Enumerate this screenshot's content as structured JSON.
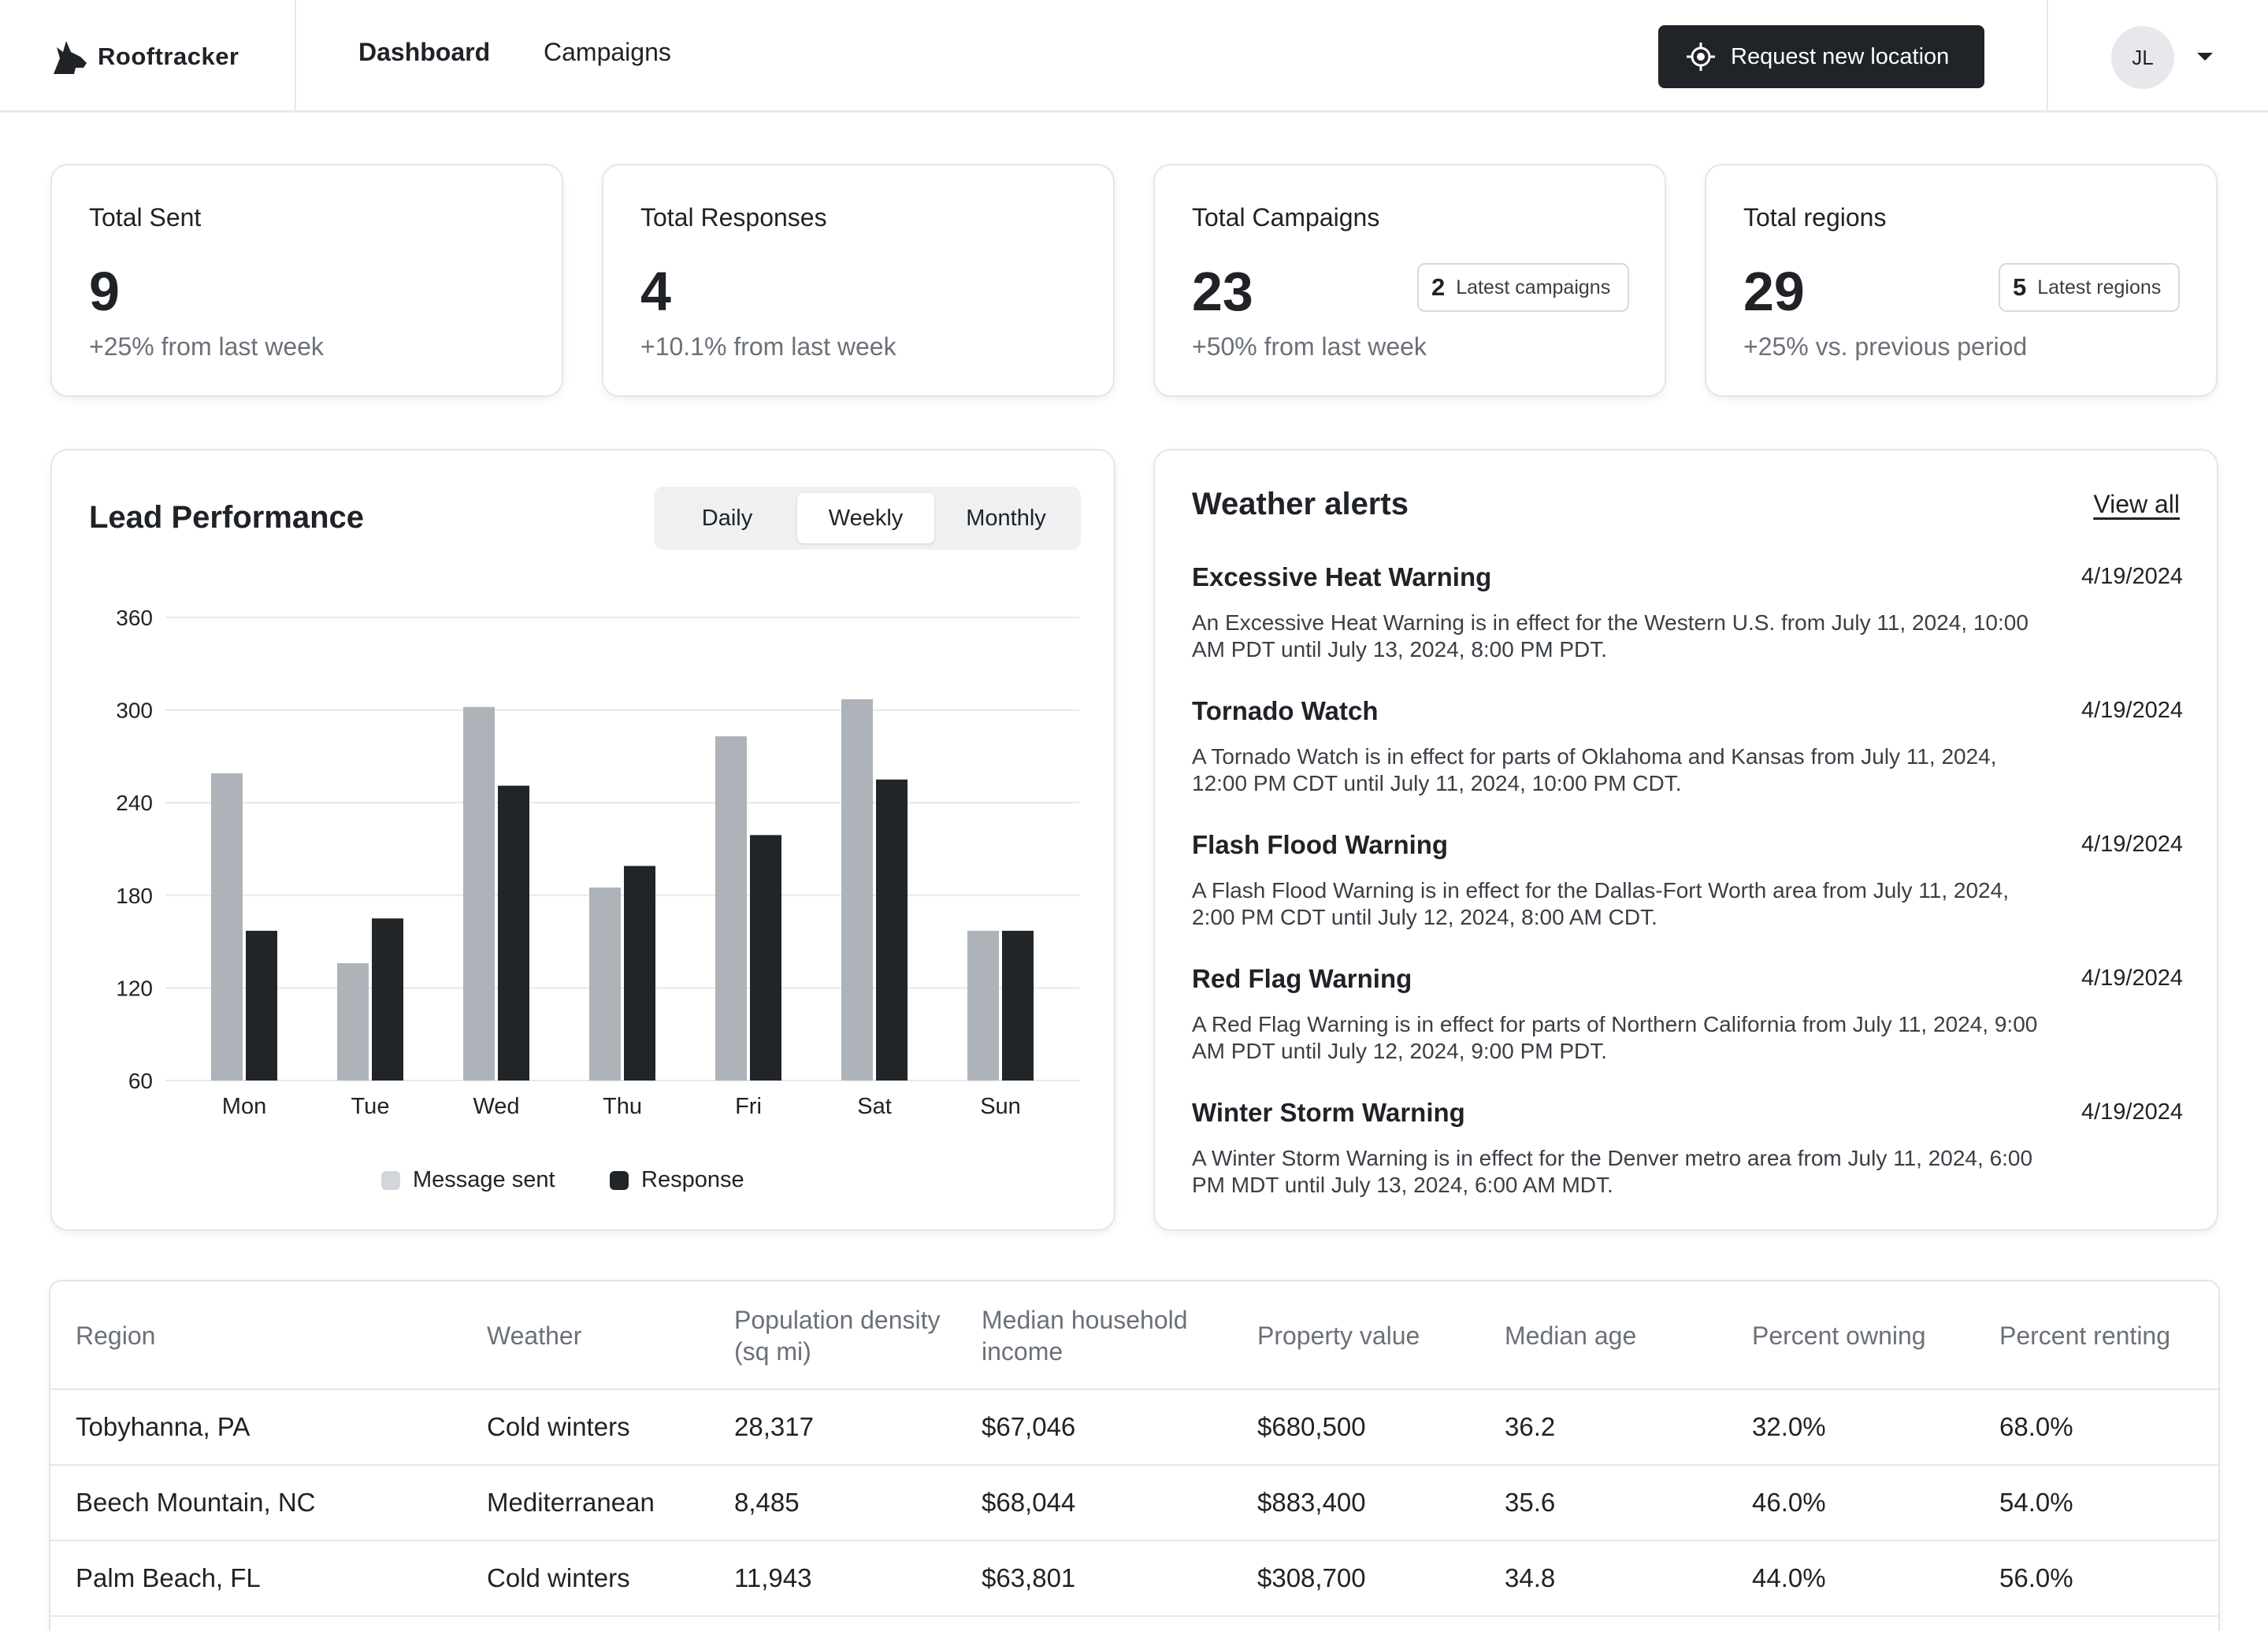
{
  "header": {
    "brand": "Rooftracker",
    "nav": [
      {
        "label": "Dashboard",
        "active": true
      },
      {
        "label": "Campaigns",
        "active": false
      }
    ],
    "request_button": "Request new location",
    "user_initials": "JL"
  },
  "stats": [
    {
      "title": "Total Sent",
      "value": "9",
      "delta": "+25% from last week"
    },
    {
      "title": "Total Responses",
      "value": "4",
      "delta": "+10.1% from last week"
    },
    {
      "title": "Total Campaigns",
      "value": "23",
      "delta": "+50% from last week",
      "pill_count": "2",
      "pill_label": "Latest campaigns"
    },
    {
      "title": "Total regions",
      "value": "29",
      "delta": "+25% vs. previous period",
      "pill_count": "5",
      "pill_label": "Latest regions"
    }
  ],
  "lead_performance": {
    "title": "Lead Performance",
    "periods": [
      "Daily",
      "Weekly",
      "Monthly"
    ],
    "selected_period": "Weekly"
  },
  "chart_data": {
    "type": "bar",
    "categories": [
      "Mon",
      "Tue",
      "Wed",
      "Thu",
      "Fri",
      "Sat",
      "Sun"
    ],
    "series": [
      {
        "name": "Message sent",
        "color": "#adb3b9",
        "values": [
          259,
          136,
          302,
          185,
          283,
          307,
          157
        ]
      },
      {
        "name": "Response",
        "color": "#222528",
        "values": [
          157,
          165,
          251,
          199,
          219,
          255,
          157
        ]
      }
    ],
    "yticks": [
      60,
      120,
      180,
      240,
      300,
      360
    ],
    "ylim": [
      60,
      360
    ],
    "grid": true,
    "legend_position": "bottom-center"
  },
  "weather_alerts": {
    "title": "Weather alerts",
    "view_all": "View all",
    "items": [
      {
        "title": "Excessive Heat Warning",
        "date": "4/19/2024",
        "body": "An Excessive Heat Warning is in effect for the Western U.S. from July 11, 2024, 10:00 AM PDT until July 13, 2024, 8:00 PM PDT."
      },
      {
        "title": "Tornado Watch",
        "date": "4/19/2024",
        "body": "A Tornado Watch is in effect for parts of Oklahoma and Kansas from July 11, 2024, 12:00 PM CDT until July 11, 2024, 10:00 PM CDT."
      },
      {
        "title": "Flash Flood Warning",
        "date": "4/19/2024",
        "body": "A Flash Flood Warning is in effect for the Dallas-Fort Worth area from July 11, 2024, 2:00 PM CDT until July 12, 2024, 8:00 AM CDT."
      },
      {
        "title": "Red Flag Warning",
        "date": "4/19/2024",
        "body": "A Red Flag Warning is in effect for parts of Northern California from July 11, 2024, 9:00 AM PDT until July 12, 2024, 9:00 PM PDT."
      },
      {
        "title": "Winter Storm Warning",
        "date": "4/19/2024",
        "body": "A Winter Storm Warning is in effect for the Denver metro area from July 11, 2024, 6:00 PM MDT until July 13, 2024, 6:00 AM MDT."
      }
    ]
  },
  "regions_table": {
    "columns": [
      "Region",
      "Weather",
      "Population density (sq mi)",
      "Median household income",
      "Property value",
      "Median age",
      "Percent owning",
      "Percent renting"
    ],
    "rows": [
      [
        "Tobyhanna, PA",
        "Cold winters",
        "28,317",
        "$67,046",
        "$680,500",
        "36.2",
        "32.0%",
        "68.0%"
      ],
      [
        "Beech Mountain, NC",
        "Mediterranean",
        "8,485",
        "$68,044",
        "$883,400",
        "35.6",
        "46.0%",
        "54.0%"
      ],
      [
        "Palm Beach, FL",
        "Cold winters",
        "11,943",
        "$63,801",
        "$308,700",
        "34.8",
        "44.0%",
        "56.0%"
      ]
    ]
  }
}
